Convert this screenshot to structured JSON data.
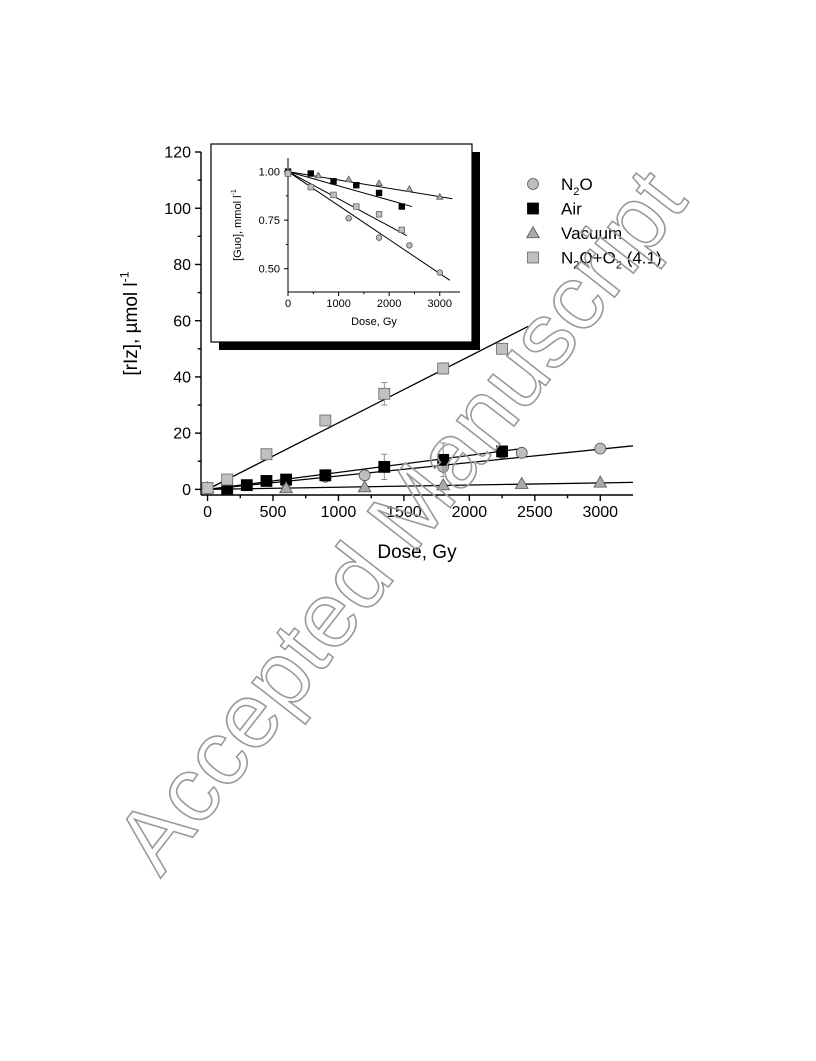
{
  "watermark": "Accepted Manuscript",
  "chart_data": [
    {
      "type": "scatter",
      "ylabel": "[rIz], µmol l⁻¹",
      "xlabel": "Dose, Gy",
      "xlim": [
        -50,
        3250
      ],
      "ylim": [
        -2,
        120
      ],
      "xticks": [
        0,
        500,
        1000,
        1500,
        2000,
        2500,
        3000
      ],
      "yticks": [
        0,
        20,
        40,
        60,
        80,
        100,
        120
      ],
      "legend_position": "right",
      "series": [
        {
          "name": "N₂O",
          "marker": "circle",
          "color": "#bdbdbd",
          "x": [
            0,
            150,
            600,
            900,
            1200,
            1800,
            2250,
            2400,
            3000
          ],
          "y": [
            0.5,
            2,
            2.5,
            4.5,
            5,
            8,
            13,
            13,
            14.5
          ],
          "err": [
            0.3,
            0.5,
            0.8,
            1,
            1.5,
            1.5,
            1.2,
            1.2,
            1
          ],
          "fit": [
            [
              0,
              0
            ],
            [
              3250,
              15.5
            ]
          ]
        },
        {
          "name": "Air",
          "marker": "square",
          "color": "#000000",
          "x": [
            150,
            300,
            450,
            600,
            900,
            1350,
            1800,
            2250
          ],
          "y": [
            0.3,
            1.5,
            3,
            3.5,
            5,
            8,
            10.5,
            13.5
          ],
          "err": [
            0.5,
            0.6,
            0.8,
            1,
            2,
            4.5,
            6,
            1.5
          ],
          "fit": [
            [
              0,
              0
            ],
            [
              2400,
              14.5
            ]
          ]
        },
        {
          "name": "Vacuum",
          "marker": "triangle",
          "color": "#a9a9a9",
          "x": [
            0,
            600,
            1200,
            1800,
            2400,
            3000
          ],
          "y": [
            0.5,
            0.5,
            0.8,
            1.5,
            2,
            2.5
          ],
          "err": [
            0,
            0,
            0,
            0,
            0,
            0
          ],
          "fit": [
            [
              0,
              0
            ],
            [
              3250,
              2.5
            ]
          ]
        },
        {
          "name": "N₂O+O₂ (4:1)",
          "marker": "square",
          "color": "#c0c0c0",
          "x": [
            0,
            150,
            450,
            900,
            1350,
            1800,
            2250
          ],
          "y": [
            0.5,
            3.5,
            12.5,
            24.5,
            34,
            43,
            50
          ],
          "err": [
            0,
            0.5,
            0.8,
            1.5,
            4,
            2,
            1
          ],
          "fit": [
            [
              0,
              0
            ],
            [
              2450,
              58
            ]
          ]
        }
      ]
    },
    {
      "type": "scatter",
      "inset": true,
      "ylabel": "[Guo], mmol l⁻¹",
      "xlabel": "Dose, Gy",
      "xlim": [
        0,
        3400
      ],
      "ylim": [
        0.38,
        1.07
      ],
      "xticks": [
        0,
        1000,
        2000,
        3000
      ],
      "yticks": [
        0.5,
        0.75,
        1.0
      ],
      "ytick_labels": [
        "0.50",
        "0.75",
        "1.00"
      ],
      "series": [
        {
          "name": "N₂O",
          "marker": "circle",
          "color": "#bdbdbd",
          "x": [
            0,
            1200,
            1800,
            2400,
            3000
          ],
          "y": [
            0.99,
            0.76,
            0.66,
            0.62,
            0.48
          ],
          "fit": [
            [
              0,
              1.0
            ],
            [
              3200,
              0.44
            ]
          ]
        },
        {
          "name": "Air",
          "marker": "square",
          "color": "#000000",
          "x": [
            0,
            450,
            900,
            1350,
            1800,
            2250
          ],
          "y": [
            1.0,
            0.99,
            0.95,
            0.93,
            0.89,
            0.82
          ],
          "fit": [
            [
              0,
              1.0
            ],
            [
              2450,
              0.82
            ]
          ]
        },
        {
          "name": "Vacuum",
          "marker": "triangle",
          "color": "#a9a9a9",
          "x": [
            0,
            600,
            1200,
            1800,
            2400,
            3000
          ],
          "y": [
            1.0,
            0.98,
            0.96,
            0.94,
            0.91,
            0.87
          ],
          "fit": [
            [
              0,
              1.0
            ],
            [
              3250,
              0.86
            ]
          ]
        },
        {
          "name": "N₂O+O₂ (4:1)",
          "marker": "square",
          "color": "#c0c0c0",
          "x": [
            0,
            450,
            900,
            1350,
            1800,
            2250
          ],
          "y": [
            0.99,
            0.92,
            0.88,
            0.82,
            0.78,
            0.7
          ],
          "fit": [
            [
              0,
              1.0
            ],
            [
              2350,
              0.67
            ]
          ]
        }
      ]
    }
  ]
}
